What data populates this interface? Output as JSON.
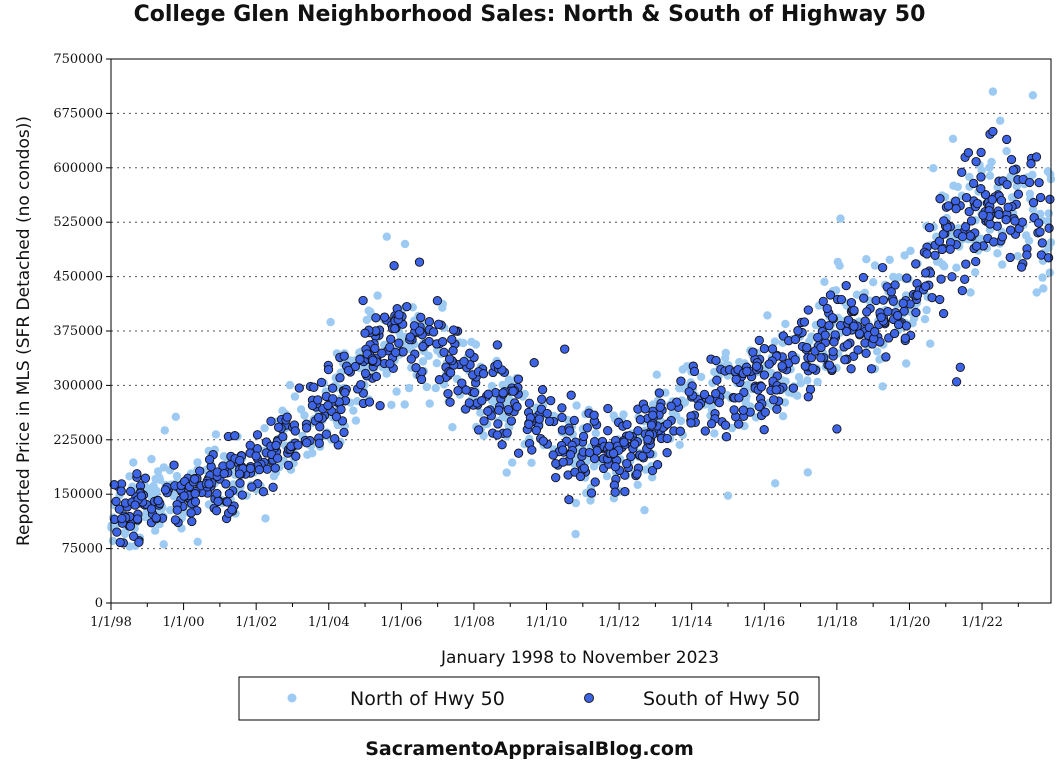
{
  "chart_data": {
    "type": "scatter",
    "title": "College Glen Neighborhood Sales: North & South of Highway 50",
    "xlabel": "January 1998 to November 2023",
    "ylabel": "Reported Price in MLS (SFR Detached (no condos))",
    "xlim": [
      1998.0,
      2023.9
    ],
    "ylim": [
      0,
      750000
    ],
    "y_ticks": [
      0,
      75000,
      150000,
      225000,
      300000,
      375000,
      450000,
      525000,
      600000,
      675000,
      750000
    ],
    "y_tick_labels": [
      "0",
      "75000",
      "150000",
      "225000",
      "300000",
      "375000",
      "450000",
      "525000",
      "600000",
      "675000",
      "750000"
    ],
    "x_ticks": [
      1998,
      2000,
      2002,
      2004,
      2006,
      2008,
      2010,
      2012,
      2014,
      2016,
      2018,
      2020,
      2022
    ],
    "x_tick_labels": [
      "1/1/98",
      "1/1/00",
      "1/1/02",
      "1/1/04",
      "1/1/06",
      "1/1/08",
      "1/1/10",
      "1/1/12",
      "1/1/14",
      "1/1/16",
      "1/1/18",
      "1/1/20",
      "1/1/22"
    ],
    "legend_position": "bottom-center",
    "trend_points": [
      [
        1998.0,
        125000
      ],
      [
        1999.0,
        140000
      ],
      [
        2000.0,
        150000
      ],
      [
        2001.0,
        165000
      ],
      [
        2002.0,
        190000
      ],
      [
        2003.0,
        230000
      ],
      [
        2004.0,
        270000
      ],
      [
        2005.0,
        340000
      ],
      [
        2006.0,
        370000
      ],
      [
        2007.0,
        350000
      ],
      [
        2008.0,
        300000
      ],
      [
        2009.0,
        270000
      ],
      [
        2010.0,
        240000
      ],
      [
        2011.0,
        210000
      ],
      [
        2012.0,
        200000
      ],
      [
        2013.0,
        245000
      ],
      [
        2014.0,
        275000
      ],
      [
        2015.0,
        290000
      ],
      [
        2016.0,
        310000
      ],
      [
        2017.0,
        340000
      ],
      [
        2018.0,
        375000
      ],
      [
        2019.0,
        385000
      ],
      [
        2020.0,
        410000
      ],
      [
        2021.0,
        500000
      ],
      [
        2022.0,
        560000
      ],
      [
        2023.0,
        540000
      ],
      [
        2023.9,
        530000
      ]
    ],
    "series": [
      {
        "name": "North of Hwy 50",
        "color": "#9ccaf2",
        "marker": "circle",
        "spread": 52000,
        "count": 720,
        "seed": 11,
        "outliers": [
          [
            1998.8,
            90000
          ],
          [
            2005.6,
            505000
          ],
          [
            2006.1,
            495000
          ],
          [
            2010.8,
            95000
          ],
          [
            2016.3,
            165000
          ],
          [
            2017.2,
            180000
          ],
          [
            2018.1,
            530000
          ],
          [
            2021.2,
            640000
          ],
          [
            2022.3,
            705000
          ],
          [
            2022.5,
            665000
          ],
          [
            2023.4,
            700000
          ],
          [
            2015.0,
            148000
          ],
          [
            2012.7,
            128000
          ]
        ]
      },
      {
        "name": "South of Hwy 50",
        "color": "#3d63e6",
        "marker": "circle",
        "spread": 40000,
        "count": 1000,
        "seed": 29,
        "outliers": [
          [
            2010.5,
            350000
          ],
          [
            2006.5,
            470000
          ],
          [
            2021.3,
            305000
          ],
          [
            2021.4,
            325000
          ],
          [
            2018.0,
            240000
          ],
          [
            2022.3,
            650000
          ],
          [
            2023.5,
            615000
          ],
          [
            2005.8,
            465000
          ]
        ]
      }
    ]
  },
  "footer": "SacramentoAppraisalBlog.com"
}
